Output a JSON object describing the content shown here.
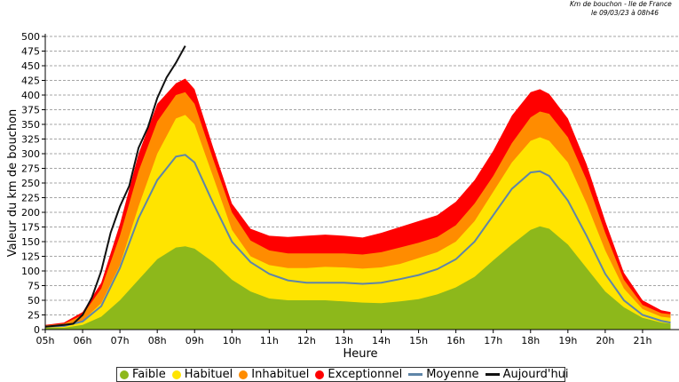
{
  "source": {
    "line1": "Km de bouchon - Ile de France",
    "line2": "le 09/03/23 à 08h46"
  },
  "colors": {
    "faible": "#8db81b",
    "habituel": "#ffe400",
    "inhabituel": "#ff8c00",
    "exceptionnel": "#ff0000",
    "moyenne": "#5f85a8",
    "aujourdhui": "#111111"
  },
  "chart_data": {
    "type": "area",
    "xlabel": "Heure",
    "ylabel": "Valeur du  km de bouchon",
    "ylim": [
      0,
      500
    ],
    "xlim": [
      5,
      22
    ],
    "grid": true,
    "legend_position": "bottom",
    "x_ticks": [
      "05h",
      "06h",
      "07h",
      "08h",
      "09h",
      "10h",
      "11h",
      "12h",
      "13h",
      "14h",
      "15h",
      "16h",
      "17h",
      "18h",
      "19h",
      "20h",
      "21h"
    ],
    "y_ticks": [
      0,
      25,
      50,
      75,
      100,
      125,
      150,
      175,
      200,
      225,
      250,
      275,
      300,
      325,
      350,
      375,
      400,
      425,
      450,
      475,
      500
    ],
    "x": [
      5.0,
      5.5,
      6.0,
      6.5,
      7.0,
      7.5,
      8.0,
      8.5,
      8.75,
      9.0,
      9.5,
      10.0,
      10.5,
      11.0,
      11.5,
      12.0,
      12.5,
      13.0,
      13.5,
      14.0,
      14.5,
      15.0,
      15.5,
      16.0,
      16.5,
      17.0,
      17.5,
      18.0,
      18.25,
      18.5,
      19.0,
      19.5,
      20.0,
      20.5,
      21.0,
      21.5,
      21.75
    ],
    "series": [
      {
        "name": "Faible",
        "values": [
          3,
          3,
          8,
          22,
          50,
          85,
          120,
          140,
          142,
          138,
          115,
          85,
          65,
          53,
          50,
          50,
          50,
          48,
          46,
          45,
          48,
          52,
          60,
          72,
          90,
          118,
          145,
          170,
          176,
          172,
          145,
          105,
          65,
          38,
          20,
          12,
          10
        ]
      },
      {
        "name": "Habituel",
        "values": [
          5,
          6,
          15,
          45,
          110,
          210,
          300,
          360,
          366,
          350,
          260,
          170,
          125,
          110,
          105,
          105,
          107,
          106,
          104,
          106,
          112,
          122,
          132,
          150,
          185,
          235,
          285,
          322,
          328,
          322,
          285,
          215,
          135,
          70,
          35,
          22,
          20
        ]
      },
      {
        "name": "Inhabituel",
        "values": [
          7,
          10,
          25,
          70,
          160,
          270,
          355,
          400,
          405,
          385,
          290,
          200,
          152,
          135,
          130,
          130,
          130,
          130,
          128,
          132,
          140,
          148,
          158,
          178,
          215,
          262,
          318,
          362,
          372,
          368,
          328,
          255,
          165,
          85,
          42,
          28,
          26
        ]
      },
      {
        "name": "Exceptionnel",
        "values": [
          8,
          12,
          30,
          80,
          180,
          300,
          385,
          420,
          428,
          410,
          310,
          215,
          172,
          160,
          158,
          160,
          162,
          160,
          157,
          165,
          175,
          185,
          195,
          218,
          255,
          305,
          365,
          405,
          410,
          402,
          360,
          282,
          185,
          97,
          50,
          33,
          30
        ]
      },
      {
        "name": "Moyenne",
        "values": [
          5,
          6,
          14,
          40,
          105,
          190,
          255,
          295,
          298,
          285,
          215,
          150,
          115,
          95,
          84,
          80,
          80,
          80,
          78,
          80,
          86,
          93,
          103,
          120,
          150,
          195,
          240,
          268,
          270,
          262,
          220,
          160,
          95,
          50,
          25,
          15,
          12
        ]
      }
    ],
    "today": {
      "name": "Aujourd'hui",
      "x": [
        5.0,
        5.5,
        5.75,
        6.0,
        6.25,
        6.5,
        6.75,
        7.0,
        7.25,
        7.5,
        7.75,
        8.0,
        8.25,
        8.5,
        8.75
      ],
      "values": [
        5,
        8,
        10,
        25,
        55,
        100,
        165,
        210,
        245,
        310,
        345,
        395,
        430,
        455,
        484
      ]
    }
  },
  "legend": {
    "items": [
      {
        "label": "Faible",
        "swatch": "dot",
        "color": "#8db81b"
      },
      {
        "label": "Habituel",
        "swatch": "dot",
        "color": "#ffe400"
      },
      {
        "label": "Inhabituel",
        "swatch": "dot",
        "color": "#ff8c00"
      },
      {
        "label": "Exceptionnel",
        "swatch": "dot",
        "color": "#ff0000"
      },
      {
        "label": "Moyenne",
        "swatch": "line",
        "color": "#5f85a8"
      },
      {
        "label": "Aujourd'hui",
        "swatch": "line",
        "color": "#111111"
      }
    ]
  }
}
